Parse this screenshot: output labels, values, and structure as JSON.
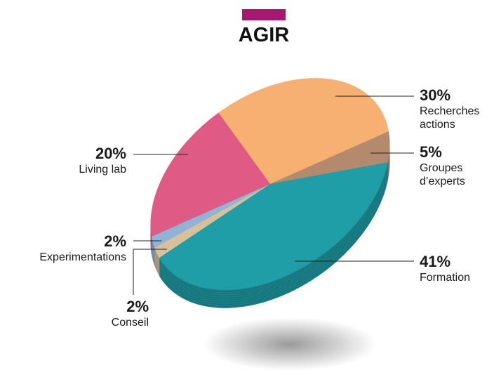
{
  "chart_data": {
    "type": "pie",
    "title": "AGIR",
    "categories": [
      "Recherches actions",
      "Groupes d’experts",
      "Formation",
      "Conseil",
      "Experimentations",
      "Living lab"
    ],
    "values": [
      30,
      5,
      41,
      2,
      2,
      20
    ],
    "value_labels": [
      "30%",
      "5%",
      "41%",
      "2%",
      "2%",
      "20%"
    ],
    "colors": [
      "#f5b072",
      "#b48a6e",
      "#209ea8",
      "#d9c09c",
      "#8fb4d6",
      "#e05a86"
    ]
  }
}
